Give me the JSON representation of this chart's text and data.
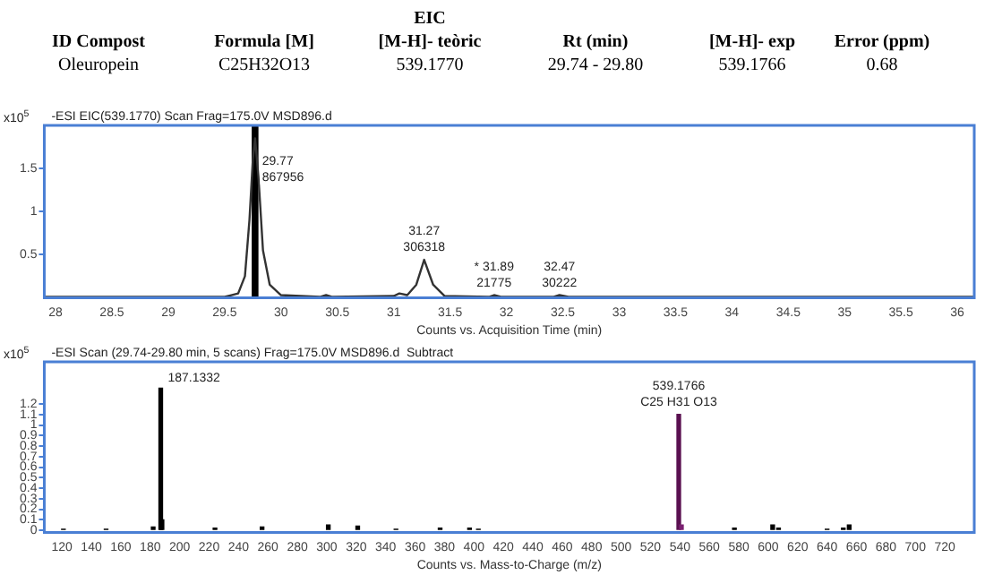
{
  "chart_data": [
    {
      "type": "other",
      "title": "EIC",
      "annotations": [
        "ID Compost",
        "Formula [M]",
        "[M-H]- teòric",
        "Rt (min)",
        "[M-H]- exp",
        "Error (ppm)",
        "Oleuropein",
        "C25H32O13",
        "539.1770",
        "29.74 - 29.80",
        "539.1766",
        "0.68"
      ]
    },
    {
      "type": "line",
      "subtitle": "-ESI EIC(539.1770) Scan Frag=175.0V MSD896.d",
      "xlabel": "Counts vs. Acquisition Time (min)",
      "ylabel": "x10$^{5}$",
      "xlim": [
        27.9,
        36.15
      ],
      "xticks": [
        28,
        28.5,
        29,
        29.5,
        30,
        30.5,
        31,
        31.5,
        32,
        32.5,
        33,
        33.5,
        34,
        34.5,
        35,
        35.5,
        36
      ],
      "ylim": [
        0,
        2
      ],
      "yticks": [
        0.5,
        1,
        1.5
      ],
      "grid": false,
      "legend": false,
      "series": [
        {
          "color": "#333333",
          "x": [
            27.9,
            29.5,
            29.62,
            29.68,
            29.72,
            29.75,
            29.77,
            29.8,
            29.84,
            29.9,
            30,
            30.35,
            30.4,
            30.45,
            31,
            31.05,
            31.12,
            31.2,
            31.27,
            31.35,
            31.45,
            31.85,
            31.89,
            31.95,
            32.42,
            32.47,
            32.55,
            33,
            36.15
          ],
          "values": [
            0.01,
            0.01,
            0.05,
            0.25,
            0.9,
            1.6,
            1.85,
            1.4,
            0.55,
            0.15,
            0.03,
            0.01,
            0.03,
            0.01,
            0.02,
            0.05,
            0.03,
            0.15,
            0.44,
            0.15,
            0.02,
            0.01,
            0.03,
            0.01,
            0.01,
            0.03,
            0.01,
            0.01,
            0.01
          ]
        }
      ],
      "bands": [
        {
          "axis": "x",
          "from": 29.74,
          "to": 29.8,
          "color": "#000000"
        }
      ],
      "annotations": [
        {
          "text": "29.77\n867956",
          "x": 29.77,
          "y": 1.5
        },
        {
          "text": "31.27\n306318",
          "x": 31.27,
          "y": 0.44
        },
        {
          "text": "* 31.89\n21775",
          "x": 31.89,
          "y": 0.03
        },
        {
          "text": "32.47\n30222",
          "x": 32.47,
          "y": 0.03
        }
      ]
    },
    {
      "type": "bar",
      "subtitle": "-ESI Scan (29.74-29.80 min, 5 scans) Frag=175.0V MSD896.d  Subtract",
      "xlabel": "Counts vs. Mass-to-Charge (m/z)",
      "ylabel": "x10$^{5}$",
      "xlim": [
        108,
        740
      ],
      "xticks": [
        120,
        140,
        160,
        180,
        200,
        220,
        240,
        260,
        280,
        300,
        320,
        340,
        360,
        380,
        400,
        420,
        440,
        460,
        480,
        500,
        520,
        540,
        560,
        580,
        600,
        620,
        640,
        660,
        680,
        700,
        720
      ],
      "ylim": [
        -0.02,
        1.6
      ],
      "yticks": [
        0,
        0.1,
        0.2,
        0.3,
        0.4,
        0.5,
        0.6,
        0.7,
        0.8,
        0.9,
        1,
        1.1,
        1.2
      ],
      "grid": false,
      "legend": false,
      "x": [
        121,
        150,
        182,
        187.1332,
        188,
        224,
        256,
        301,
        321,
        347,
        377,
        397,
        403,
        539.1766,
        541,
        577,
        603,
        607,
        640,
        651,
        655
      ],
      "values": [
        0.01,
        0.01,
        0.03,
        1.35,
        0.1,
        0.02,
        0.03,
        0.05,
        0.04,
        0.01,
        0.02,
        0.02,
        0.01,
        1.1,
        0.05,
        0.02,
        0.05,
        0.02,
        0.01,
        0.02,
        0.05
      ],
      "colors": [
        "#000000",
        "#000000",
        "#000000",
        "#000000",
        "#000000",
        "#000000",
        "#000000",
        "#000000",
        "#000000",
        "#000000",
        "#000000",
        "#000000",
        "#000000",
        "#5a1050",
        "#7a2070",
        "#000000",
        "#000000",
        "#000000",
        "#000000",
        "#000000",
        "#000000"
      ],
      "annotations": [
        {
          "text": "187.1332",
          "x": 187.1332,
          "y": 1.35
        },
        {
          "text": "539.1766\nC25 H31 O13",
          "x": 539.1766,
          "y": 1.1
        }
      ]
    }
  ]
}
